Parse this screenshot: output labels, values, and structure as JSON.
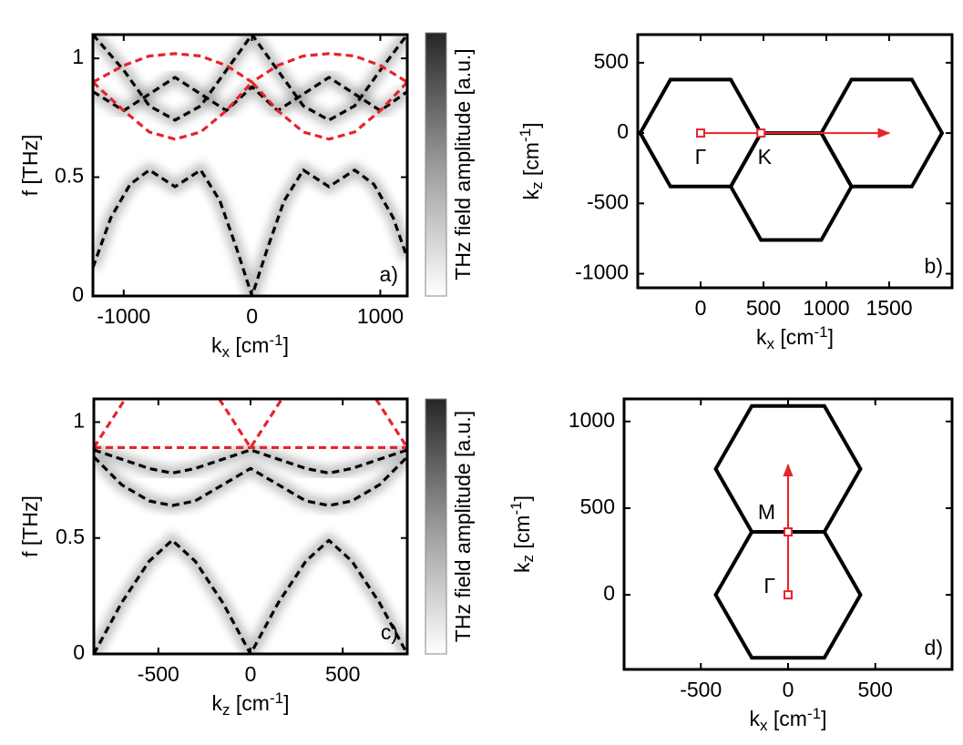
{
  "chart_data": [
    {
      "type": "line",
      "panel_label": "a)",
      "line_style": "dashed",
      "xlabel": [
        "k",
        "x",
        " [cm",
        "-1",
        "]"
      ],
      "ylabel": "f [THz]",
      "colorbar_label": "THz field amplitude [a.u.]",
      "xlim": [
        -1240,
        1210
      ],
      "ylim": [
        0,
        1.1
      ],
      "xticks": [
        -1000,
        0,
        1000
      ],
      "yticks": [
        0,
        0.5,
        1
      ],
      "series": [
        {
          "color": "#000000",
          "x": [
            -1240,
            -1100,
            -950,
            -800,
            -600,
            -400,
            -250,
            -120,
            0,
            120,
            250,
            400,
            600,
            800,
            950,
            1100,
            1210
          ],
          "values": [
            0.12,
            0.33,
            0.47,
            0.53,
            0.46,
            0.53,
            0.4,
            0.2,
            0,
            0.2,
            0.4,
            0.53,
            0.46,
            0.53,
            0.47,
            0.33,
            0.16
          ]
        },
        {
          "color": "#000000",
          "x": [
            -1240,
            -1000,
            -800,
            -600,
            -400,
            -200,
            0,
            200,
            400,
            600,
            800,
            1000,
            1210
          ],
          "values": [
            0.86,
            0.78,
            0.85,
            0.92,
            0.85,
            0.78,
            0.88,
            0.78,
            0.85,
            0.92,
            0.85,
            0.78,
            0.86
          ]
        },
        {
          "color": "#000000",
          "x": [
            -1240,
            -1000,
            -800,
            -600,
            -400,
            -200,
            0,
            200,
            400,
            600,
            800,
            1000,
            1210
          ],
          "values": [
            1.1,
            0.95,
            0.8,
            0.74,
            0.8,
            0.95,
            1.1,
            0.95,
            0.8,
            0.74,
            0.8,
            0.95,
            1.1
          ]
        },
        {
          "color": "#e8232a",
          "x": [
            -1240,
            -1000,
            -800,
            -600,
            -400,
            -200,
            0,
            200,
            400,
            600,
            800,
            1000,
            1210
          ],
          "values": [
            0.9,
            0.78,
            0.69,
            0.66,
            0.69,
            0.78,
            0.9,
            0.78,
            0.69,
            0.66,
            0.69,
            0.78,
            0.9
          ]
        },
        {
          "color": "#e8232a",
          "x": [
            -1240,
            -1000,
            -800,
            -600,
            -400,
            -200,
            0,
            200,
            400,
            600,
            800,
            1000,
            1210
          ],
          "values": [
            0.9,
            0.97,
            1.01,
            1.02,
            1.01,
            0.97,
            0.9,
            0.97,
            1.01,
            1.02,
            1.01,
            0.97,
            0.9
          ]
        }
      ]
    },
    {
      "type": "brillouin",
      "panel_label": "b)",
      "xlabel": [
        "k",
        "x",
        " [cm",
        "-1",
        "]"
      ],
      "ylabel": [
        "k",
        "z",
        " [cm",
        "-1",
        "]"
      ],
      "xlim": [
        -500,
        2000
      ],
      "ylim": [
        -1100,
        700
      ],
      "xticks": [
        0,
        500,
        1000,
        1500
      ],
      "yticks": [
        -1000,
        -500,
        0,
        500
      ],
      "polygon_color": "#000000",
      "path_color": "#e8232a",
      "polygons": [
        {
          "x": [
            -480,
            -240,
            240,
            480,
            240,
            -240
          ],
          "y": [
            0,
            380,
            380,
            0,
            -380,
            -380
          ]
        },
        {
          "x": [
            960,
            1200,
            1680,
            1920,
            1680,
            1200
          ],
          "y": [
            0,
            380,
            380,
            0,
            -380,
            -380
          ]
        },
        {
          "x": [
            240,
            480,
            960,
            1200,
            960,
            480
          ],
          "y": [
            -380,
            0,
            0,
            -380,
            -760,
            -760
          ]
        }
      ],
      "arrow": {
        "x": [
          0,
          1500
        ],
        "y": [
          0,
          0
        ]
      },
      "points": [
        {
          "label": "Γ",
          "x": 0,
          "y": 0
        },
        {
          "label": "K",
          "x": 480,
          "y": 0
        }
      ]
    },
    {
      "type": "line",
      "panel_label": "c)",
      "line_style": "dashed",
      "xlabel": [
        "k",
        "z",
        " [cm",
        "-1",
        "]"
      ],
      "ylabel": "f [THz]",
      "colorbar_label": "THz field amplitude [a.u.]",
      "xlim": [
        -850,
        850
      ],
      "ylim": [
        0,
        1.1
      ],
      "xticks": [
        -500,
        0,
        500
      ],
      "yticks": [
        0,
        0.5,
        1
      ],
      "series": [
        {
          "color": "#000000",
          "x": [
            -850,
            -700,
            -550,
            -425,
            -300,
            -150,
            0,
            150,
            300,
            425,
            550,
            700,
            850
          ],
          "values": [
            0,
            0.22,
            0.4,
            0.49,
            0.4,
            0.22,
            0,
            0.22,
            0.4,
            0.49,
            0.4,
            0.22,
            0
          ]
        },
        {
          "color": "#000000",
          "x": [
            -850,
            -700,
            -550,
            -425,
            -300,
            -150,
            0,
            150,
            300,
            425,
            550,
            700,
            850
          ],
          "values": [
            0.85,
            0.73,
            0.66,
            0.64,
            0.66,
            0.73,
            0.8,
            0.73,
            0.66,
            0.64,
            0.66,
            0.73,
            0.85
          ]
        },
        {
          "color": "#000000",
          "x": [
            -850,
            -700,
            -550,
            -425,
            -300,
            -150,
            0,
            150,
            300,
            425,
            550,
            700,
            850
          ],
          "values": [
            0.88,
            0.84,
            0.8,
            0.78,
            0.8,
            0.84,
            0.88,
            0.84,
            0.8,
            0.78,
            0.8,
            0.84,
            0.88
          ]
        },
        {
          "color": "#e8232a",
          "x": [
            -850,
            850
          ],
          "values": [
            0.89,
            0.89
          ]
        },
        {
          "color": "#e8232a",
          "x": [
            -850,
            -680
          ],
          "values": [
            0.89,
            1.1
          ]
        },
        {
          "color": "#e8232a",
          "x": [
            -170,
            0,
            170
          ],
          "values": [
            1.1,
            0.89,
            1.1
          ]
        },
        {
          "color": "#e8232a",
          "x": [
            680,
            850
          ],
          "values": [
            1.1,
            0.89
          ]
        }
      ]
    },
    {
      "type": "brillouin",
      "panel_label": "d)",
      "xlabel": [
        "k",
        "x",
        " [cm",
        "-1",
        "]"
      ],
      "ylabel": [
        "k",
        "z",
        " [cm",
        "-1",
        "]"
      ],
      "xlim": [
        -940,
        940
      ],
      "ylim": [
        -430,
        1130
      ],
      "xticks": [
        -500,
        0,
        500
      ],
      "yticks": [
        0,
        500,
        1000
      ],
      "polygon_color": "#000000",
      "path_color": "#e8232a",
      "polygons": [
        {
          "x": [
            -415,
            -208,
            208,
            415,
            208,
            -208
          ],
          "y": [
            0,
            363,
            363,
            0,
            -363,
            -363
          ]
        },
        {
          "x": [
            -415,
            -208,
            208,
            415,
            208,
            -208
          ],
          "y": [
            726,
            1089,
            1089,
            726,
            363,
            363
          ]
        }
      ],
      "arrow": {
        "x": [
          0,
          0
        ],
        "y": [
          0,
          750
        ]
      },
      "points": [
        {
          "label": "Γ",
          "x": 0,
          "y": 0
        },
        {
          "label": "M",
          "x": 0,
          "y": 363
        }
      ]
    }
  ]
}
